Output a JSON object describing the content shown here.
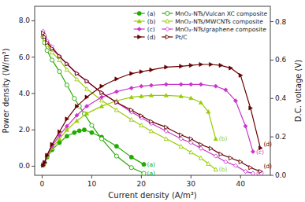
{
  "chart_data": {
    "type": "line",
    "xlabel": "Current density (A/m³)",
    "ylabel": "Power density (W/m³)",
    "y2label": "D.C. voltage (V)",
    "xlim": [
      -1.5,
      46
    ],
    "ylim": [
      -0.5,
      8.8
    ],
    "y2lim": [
      0.0,
      0.88
    ],
    "xticks": [
      0,
      10,
      20,
      30,
      40
    ],
    "yticks": [
      {
        "value": 0.0,
        "label": "0.0"
      },
      {
        "value": 2.0,
        "label": "2.0"
      },
      {
        "value": 4.0,
        "label": "4.0"
      },
      {
        "value": 6.0,
        "label": "6.0"
      },
      {
        "value": 8.0,
        "label": "8.0"
      }
    ],
    "y2ticks": [
      {
        "value": 0.0,
        "label": "0.0"
      },
      0.2,
      0.4,
      0.6,
      0.8
    ],
    "grid": false,
    "legend": "upper right",
    "series": [
      {
        "name": "(a)",
        "color": "#22aa00",
        "marker": "circle",
        "x": [
          0.2,
          0.5,
          1.0,
          2.0,
          3.5,
          5.0,
          6.5,
          7.5,
          8.5,
          10.0,
          12.0,
          15.0,
          18.0,
          20.5
        ],
        "values": [
          0.05,
          0.2,
          0.5,
          0.9,
          1.3,
          1.65,
          1.85,
          1.95,
          2.0,
          1.85,
          1.6,
          1.1,
          0.5,
          0.1
        ]
      },
      {
        "name": "MnO₂-NTs/Vulcan XC composite",
        "color": "#22aa00",
        "marker": "circle-open",
        "axis": "y2",
        "x": [
          0.2,
          0.5,
          1.0,
          2.0,
          3.5,
          5.0,
          6.5,
          7.5,
          8.5,
          10.0,
          12.0,
          15.0,
          18.0,
          20.5
        ],
        "values": [
          0.72,
          0.69,
          0.65,
          0.6,
          0.54,
          0.47,
          0.4,
          0.36,
          0.32,
          0.26,
          0.19,
          0.1,
          0.04,
          0.01
        ]
      },
      {
        "name": "(b)",
        "color": "#99cc00",
        "marker": "triangle-up",
        "x": [
          0.2,
          0.5,
          1.0,
          2.0,
          3.5,
          5.0,
          7.0,
          9.0,
          12.0,
          15.0,
          18.0,
          20.0,
          22.0,
          25.0,
          28.0,
          30.0,
          32.0,
          33.5,
          35.0
        ],
        "values": [
          0.05,
          0.2,
          0.55,
          1.0,
          1.5,
          2.0,
          2.5,
          2.9,
          3.3,
          3.6,
          3.8,
          3.85,
          3.9,
          3.9,
          3.85,
          3.75,
          3.5,
          3.0,
          1.5
        ]
      },
      {
        "name": "MnO₂-NTs/MWCNTs composite",
        "color": "#99cc00",
        "marker": "triangle-up-open",
        "axis": "y2",
        "x": [
          0.2,
          0.5,
          1.0,
          2.0,
          3.5,
          5.0,
          7.0,
          9.0,
          12.0,
          15.0,
          18.0,
          20.0,
          22.0,
          25.0,
          28.0,
          30.0,
          32.0,
          33.5,
          35.0
        ],
        "values": [
          0.73,
          0.71,
          0.68,
          0.64,
          0.6,
          0.55,
          0.5,
          0.45,
          0.39,
          0.34,
          0.29,
          0.26,
          0.23,
          0.19,
          0.15,
          0.12,
          0.09,
          0.06,
          0.03
        ]
      },
      {
        "name": "(c)",
        "color": "#cc33cc",
        "marker": "diamond",
        "x": [
          0.2,
          0.5,
          1.0,
          2.0,
          3.5,
          5.0,
          7.0,
          9.0,
          12.0,
          15.0,
          18.0,
          20.0,
          22.0,
          25.0,
          28.0,
          30.0,
          32.0,
          35.0,
          37.0,
          39.0,
          41.0,
          42.5
        ],
        "values": [
          0.05,
          0.2,
          0.6,
          1.1,
          1.7,
          2.2,
          2.8,
          3.3,
          3.8,
          4.1,
          4.3,
          4.4,
          4.45,
          4.5,
          4.5,
          4.5,
          4.5,
          4.4,
          4.2,
          3.6,
          2.2,
          0.8
        ]
      },
      {
        "name": "MnO₂-NTs/graphene composite",
        "color": "#cc33cc",
        "marker": "diamond-open",
        "axis": "y2",
        "x": [
          0.2,
          0.5,
          1.0,
          2.0,
          3.5,
          5.0,
          7.0,
          9.0,
          12.0,
          15.0,
          18.0,
          20.0,
          22.0,
          25.0,
          28.0,
          30.0,
          32.0,
          35.0,
          37.0,
          39.0,
          41.0,
          42.5
        ],
        "values": [
          0.75,
          0.73,
          0.7,
          0.67,
          0.62,
          0.58,
          0.53,
          0.49,
          0.43,
          0.38,
          0.33,
          0.3,
          0.27,
          0.23,
          0.19,
          0.17,
          0.14,
          0.1,
          0.07,
          0.05,
          0.02,
          0.01
        ]
      },
      {
        "name": "(d)",
        "color": "#660000",
        "marker": "triangle-right",
        "x": [
          0.2,
          0.5,
          1.0,
          2.0,
          3.5,
          5.0,
          7.0,
          9.0,
          12.0,
          15.0,
          18.0,
          20.0,
          22.0,
          25.0,
          28.0,
          30.0,
          32.0,
          34.0,
          36.0,
          38.0,
          40.0,
          42.0,
          44.0
        ],
        "values": [
          0.05,
          0.2,
          0.6,
          1.2,
          1.9,
          2.6,
          3.3,
          3.8,
          4.4,
          4.8,
          5.1,
          5.2,
          5.3,
          5.45,
          5.5,
          5.55,
          5.6,
          5.6,
          5.55,
          5.4,
          5.0,
          3.2,
          1.0
        ]
      },
      {
        "name": "Pt/C",
        "color": "#660000",
        "marker": "triangle-right-open",
        "axis": "y2",
        "x": [
          0.2,
          0.5,
          1.0,
          2.0,
          3.5,
          5.0,
          7.0,
          9.0,
          12.0,
          15.0,
          18.0,
          20.0,
          22.0,
          25.0,
          28.0,
          30.0,
          32.0,
          34.0,
          36.0,
          38.0,
          40.0,
          42.0,
          44.0
        ],
        "values": [
          0.74,
          0.72,
          0.69,
          0.66,
          0.62,
          0.58,
          0.53,
          0.49,
          0.43,
          0.38,
          0.34,
          0.31,
          0.28,
          0.25,
          0.21,
          0.19,
          0.16,
          0.14,
          0.11,
          0.09,
          0.07,
          0.04,
          0.02
        ]
      }
    ],
    "annotations": [
      "(a)",
      "(a)",
      "(b)",
      "(b)",
      "(c)",
      "(c)",
      "(d)",
      "(d)"
    ]
  }
}
